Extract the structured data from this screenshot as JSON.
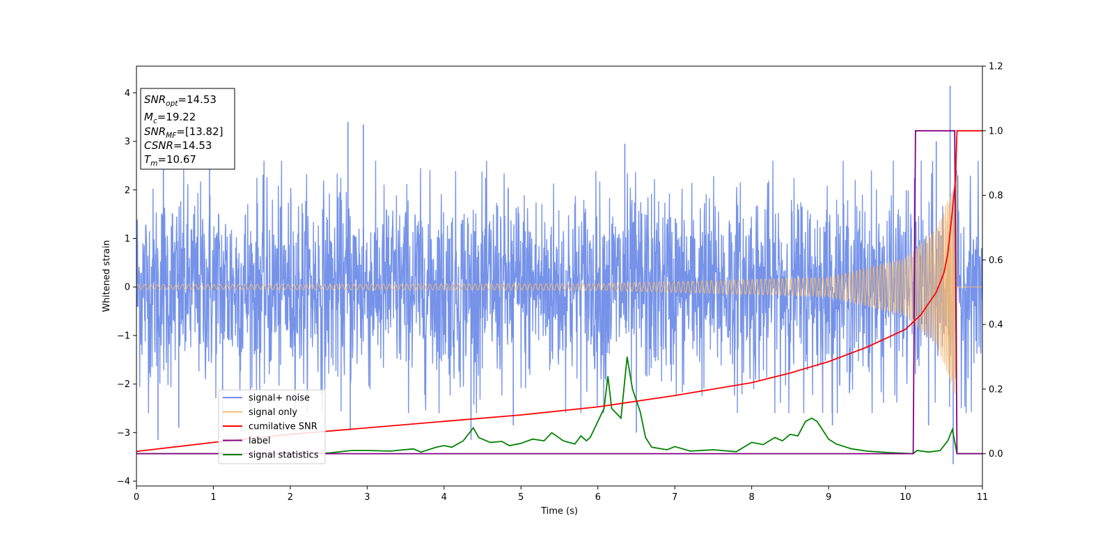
{
  "chart_data": {
    "type": "line",
    "xlabel": "Time (s)",
    "ylabel": "Whitened strain",
    "xlim": [
      0,
      11
    ],
    "ylim": [
      -4.1,
      4.55
    ],
    "y2lim": [
      -0.1,
      1.2
    ],
    "xticks": [
      "0",
      "1",
      "2",
      "3",
      "4",
      "5",
      "6",
      "7",
      "8",
      "9",
      "10",
      "11"
    ],
    "yticks": [
      "−4",
      "−3",
      "−2",
      "−1",
      "0",
      "1",
      "2",
      "3",
      "4"
    ],
    "y2ticks": [
      "0.0",
      "0.2",
      "0.4",
      "0.6",
      "0.8",
      "1.0",
      "1.2"
    ],
    "grid": false,
    "legend_position": "lower-left",
    "colors": {
      "noise": "#6f8de8",
      "signal": "#f5b971",
      "csnr": "#ff0000",
      "label": "#800080",
      "stats": "#008000"
    },
    "info_box": [
      {
        "sym": "SNR",
        "sub": "opt",
        "val": "=14.53"
      },
      {
        "sym": "M",
        "sub": "c",
        "val": "=19.22"
      },
      {
        "sym": "SNR",
        "sub": "MF",
        "val": "=[13.82]"
      },
      {
        "sym": "CSNR",
        "sub": "",
        "val": "=14.53"
      },
      {
        "sym": "T",
        "sub": "m",
        "val": "=10.67"
      }
    ],
    "series": [
      {
        "name": "signal+ noise",
        "axis": "left",
        "color": "#6f8de8",
        "description_amplitude": 1.0,
        "x_range": [
          0,
          11
        ],
        "spikes": [
          [
            0.28,
            -3.15
          ],
          [
            0.35,
            3.0
          ],
          [
            0.55,
            -2.9
          ],
          [
            0.95,
            3.0
          ],
          [
            1.12,
            -3.0
          ],
          [
            2.75,
            3.4
          ],
          [
            2.95,
            3.35
          ],
          [
            2.78,
            -2.95
          ],
          [
            4.35,
            -3.15
          ],
          [
            4.9,
            -2.85
          ],
          [
            6.35,
            2.95
          ],
          [
            6.5,
            -3.0
          ],
          [
            9.05,
            -2.85
          ],
          [
            10.3,
            -2.85
          ],
          [
            10.4,
            3.0
          ],
          [
            10.58,
            4.15
          ],
          [
            10.62,
            -3.65
          ],
          [
            10.68,
            2.3
          ]
        ]
      },
      {
        "name": "signal only",
        "axis": "left",
        "color": "#f5b971",
        "chirp_end": 10.67,
        "envelope": [
          [
            0,
            0.05
          ],
          [
            6,
            0.07
          ],
          [
            9,
            0.2
          ],
          [
            10,
            0.6
          ],
          [
            10.4,
            1.2
          ],
          [
            10.6,
            2.0
          ],
          [
            10.67,
            2.4
          ]
        ]
      },
      {
        "name": "cumilative SNR",
        "axis": "right",
        "color": "#ff0000",
        "x": [
          0,
          1,
          2,
          3,
          4,
          5,
          6,
          7,
          8,
          8.5,
          9,
          9.5,
          10,
          10.2,
          10.4,
          10.5,
          10.55,
          10.6,
          10.65,
          10.67,
          10.7,
          11
        ],
        "y": [
          0.007,
          0.035,
          0.06,
          0.08,
          0.1,
          0.12,
          0.145,
          0.18,
          0.22,
          0.25,
          0.285,
          0.33,
          0.385,
          0.43,
          0.5,
          0.56,
          0.62,
          0.73,
          0.85,
          1.0,
          1.0,
          1.0
        ]
      },
      {
        "name": "label",
        "axis": "right",
        "color": "#800080",
        "x": [
          0,
          10.1,
          10.13,
          10.64,
          10.67,
          11
        ],
        "y": [
          0.0,
          0.0,
          1.0,
          1.0,
          0.0,
          0.0
        ]
      },
      {
        "name": "signal statistics",
        "axis": "right",
        "color": "#008000",
        "x": [
          0,
          0.5,
          1.0,
          1.5,
          2.0,
          2.5,
          2.8,
          3.0,
          3.3,
          3.6,
          3.7,
          3.9,
          4.0,
          4.1,
          4.25,
          4.38,
          4.45,
          4.6,
          4.75,
          4.85,
          5.0,
          5.15,
          5.3,
          5.4,
          5.55,
          5.7,
          5.78,
          5.85,
          5.9,
          6.0,
          6.08,
          6.13,
          6.18,
          6.3,
          6.38,
          6.45,
          6.55,
          6.62,
          6.7,
          6.9,
          7.0,
          7.2,
          7.5,
          7.8,
          8.0,
          8.15,
          8.3,
          8.4,
          8.5,
          8.6,
          8.7,
          8.78,
          8.85,
          9.0,
          9.1,
          9.3,
          9.5,
          9.8,
          10.1,
          10.15,
          10.3,
          10.45,
          10.55,
          10.61,
          10.67,
          10.8,
          11
        ],
        "y": [
          0.0,
          0.0,
          0.0,
          0.0,
          0.0,
          0.002,
          0.01,
          0.01,
          0.008,
          0.015,
          0.005,
          0.02,
          0.025,
          0.02,
          0.04,
          0.08,
          0.05,
          0.035,
          0.038,
          0.025,
          0.032,
          0.045,
          0.04,
          0.065,
          0.04,
          0.03,
          0.055,
          0.04,
          0.05,
          0.1,
          0.14,
          0.24,
          0.14,
          0.11,
          0.3,
          0.2,
          0.13,
          0.05,
          0.02,
          0.012,
          0.022,
          0.008,
          0.012,
          0.006,
          0.035,
          0.028,
          0.05,
          0.04,
          0.06,
          0.055,
          0.1,
          0.11,
          0.1,
          0.045,
          0.03,
          0.015,
          0.008,
          0.003,
          0.0,
          0.01,
          0.005,
          0.01,
          0.04,
          0.075,
          0.0,
          0.0,
          0.0
        ]
      }
    ]
  }
}
